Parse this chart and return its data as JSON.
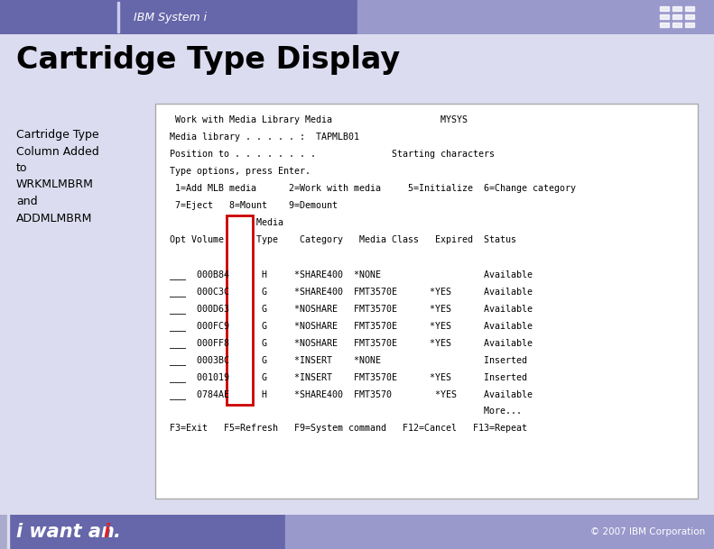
{
  "title": "Cartridge Type Display",
  "header_bg_left": "#8888bb",
  "header_bg_right": "#9999dd",
  "header_text": "IBM System i",
  "footer_bg": "#7777bb",
  "footer_right": "© 2007 IBM Corporation",
  "main_bg": "#dcdcf0",
  "body_bg": "#ffffff",
  "left_label": "Cartridge Type\nColumn Added\nto\nWRKMLMBRM\nand\nADDMLMBRM",
  "screen_lines": [
    "  Work with Media Library Media                    MYSYS",
    " Media library . . . . . :  TAPMLB01",
    " Position to . . . . . . . .              Starting characters",
    " Type options, press Enter.",
    "  1=Add MLB media      2=Work with media     5=Initialize  6=Change category",
    "  7=Eject   8=Mount    9=Demount",
    "                 Media",
    " Opt Volume      Type    Category   Media Class   Expired  Status",
    "",
    " ___  000B84      H     *SHARE400  *NONE                   Available",
    " ___  000C3C      G     *SHARE400  FMT3570E      *YES      Available",
    " ___  000D63      G     *NOSHARE   FMT3570E      *YES      Available",
    " ___  000FC9      G     *NOSHARE   FMT3570E      *YES      Available",
    " ___  000FF8      G     *NOSHARE   FMT3570E      *YES      Available",
    " ___  0003BC      G     *INSERT    *NONE                   Inserted",
    " ___  001019      G     *INSERT    FMT3570E      *YES      Inserted",
    " ___  0784AE      H     *SHARE400  FMT3570        *YES     Available",
    "                                                           More...",
    " F3=Exit   F5=Refresh   F9=System command   F12=Cancel   F13=Repeat"
  ],
  "figsize": [
    7.91,
    6.09
  ],
  "dpi": 100
}
